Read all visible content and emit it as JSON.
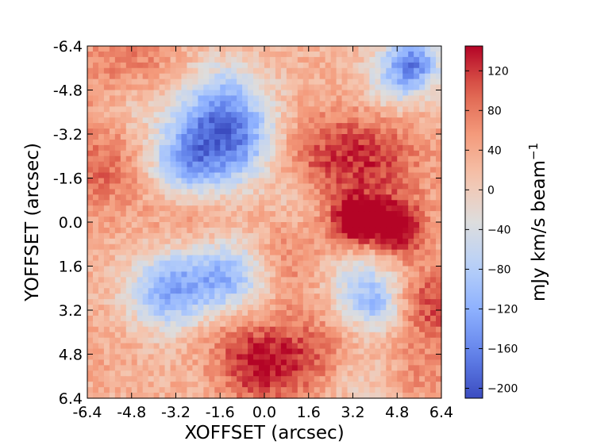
{
  "chart_data": {
    "type": "heatmap",
    "title": "",
    "xlabel": "XOFFSET (arcsec)",
    "ylabel": "YOFFSET (arcsec)",
    "xlim": [
      -6.4,
      6.4
    ],
    "ylim": [
      -6.4,
      6.4
    ],
    "y_axis_inverted": true,
    "x_ticks": [
      "-6.4",
      "-4.8",
      "-3.2",
      "-1.6",
      "0.0",
      "1.6",
      "3.2",
      "4.8",
      "6.4"
    ],
    "y_ticks": [
      "-6.4",
      "-4.8",
      "-3.2",
      "-1.6",
      "0.0",
      "1.6",
      "3.2",
      "4.8",
      "6.4"
    ],
    "grid": false,
    "colormap": "coolwarm",
    "colorbar": {
      "label": "mJy km/s beam",
      "label_superscript": "−1",
      "range": [
        -210,
        145
      ],
      "ticks": [
        "120",
        "80",
        "40",
        "0",
        "−40",
        "−80",
        "−120",
        "−160",
        "−200"
      ],
      "tick_values": [
        120,
        80,
        40,
        0,
        -40,
        -80,
        -120,
        -160,
        -200
      ],
      "position": "right"
    },
    "features": [
      {
        "x": 5.4,
        "y": -5.8,
        "value": -150,
        "sigma": 0.7
      },
      {
        "x": 4.6,
        "y": -5.0,
        "value": -70,
        "sigma": 0.9
      },
      {
        "x": -1.6,
        "y": -4.0,
        "value": -150,
        "sigma": 1.2
      },
      {
        "x": -2.8,
        "y": -2.2,
        "value": -140,
        "sigma": 1.0
      },
      {
        "x": -0.8,
        "y": -2.6,
        "value": -90,
        "sigma": 1.0
      },
      {
        "x": -4.8,
        "y": -4.2,
        "value": -40,
        "sigma": 0.8
      },
      {
        "x": 1.2,
        "y": -1.0,
        "value": -40,
        "sigma": 0.7
      },
      {
        "x": 3.3,
        "y": 0.0,
        "value": 150,
        "sigma": 0.6
      },
      {
        "x": 4.8,
        "y": 0.2,
        "value": 150,
        "sigma": 0.7
      },
      {
        "x": 3.8,
        "y": -2.4,
        "value": 95,
        "sigma": 1.4
      },
      {
        "x": 1.5,
        "y": -2.0,
        "value": 60,
        "sigma": 1.2
      },
      {
        "x": 6.0,
        "y": 3.0,
        "value": 90,
        "sigma": 1.0
      },
      {
        "x": -5.8,
        "y": -2.0,
        "value": 70,
        "sigma": 1.2
      },
      {
        "x": -2.8,
        "y": 0.0,
        "value": 60,
        "sigma": 1.0
      },
      {
        "x": -4.8,
        "y": -5.6,
        "value": 60,
        "sigma": 1.4
      },
      {
        "x": -2.6,
        "y": 2.2,
        "value": -110,
        "sigma": 1.2
      },
      {
        "x": -1.0,
        "y": 2.0,
        "value": -90,
        "sigma": 0.9
      },
      {
        "x": -3.8,
        "y": 2.6,
        "value": -70,
        "sigma": 0.9
      },
      {
        "x": 3.6,
        "y": 2.4,
        "value": -100,
        "sigma": 0.9
      },
      {
        "x": 4.2,
        "y": 3.2,
        "value": -60,
        "sigma": 0.6
      },
      {
        "x": -0.2,
        "y": 5.2,
        "value": 110,
        "sigma": 1.0
      },
      {
        "x": 1.6,
        "y": 4.8,
        "value": 70,
        "sigma": 1.1
      },
      {
        "x": -1.6,
        "y": 3.8,
        "value": 50,
        "sigma": 0.9
      },
      {
        "x": 0.6,
        "y": 1.6,
        "value": 50,
        "sigma": 1.0
      },
      {
        "x": -6.2,
        "y": 4.8,
        "value": 20,
        "sigma": 1.0
      },
      {
        "x": 5.8,
        "y": 5.6,
        "value": 40,
        "sigma": 0.9
      },
      {
        "x": 3.4,
        "y": 5.8,
        "value": -30,
        "sigma": 0.8
      }
    ],
    "background_value": 30,
    "grid_cells": 64
  }
}
